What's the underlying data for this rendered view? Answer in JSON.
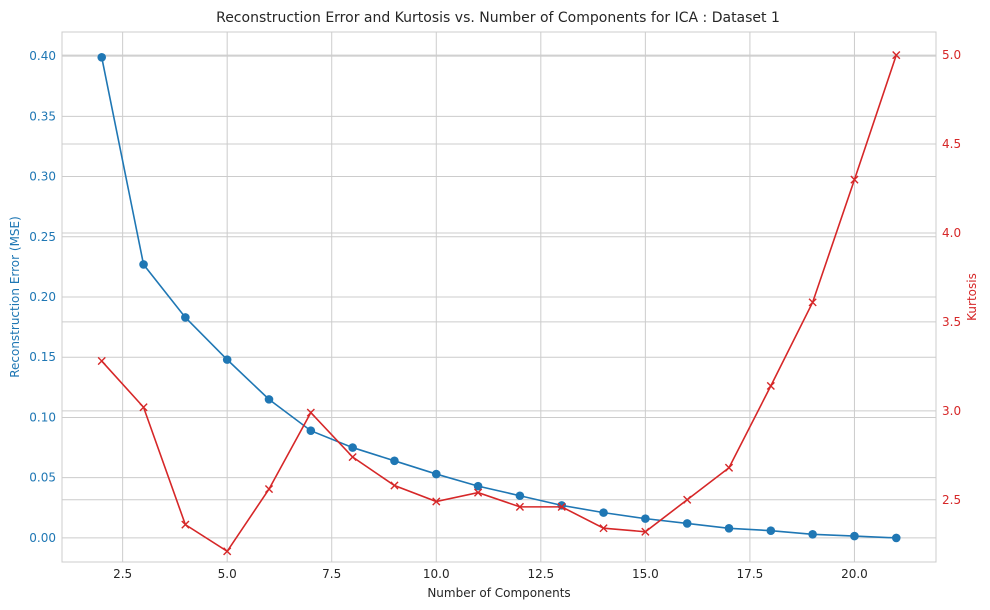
{
  "chart_data": {
    "type": "line",
    "title": "Reconstruction Error and Kurtosis vs. Number of Components for ICA :  Dataset 1",
    "xlabel": "Number of Components",
    "ylabel_left": "Reconstruction Error (MSE)",
    "ylabel_right": "Kurtosis",
    "x": [
      2,
      3,
      4,
      5,
      6,
      7,
      8,
      9,
      10,
      11,
      12,
      13,
      14,
      15,
      16,
      17,
      18,
      19,
      20,
      21
    ],
    "xlim": [
      1.05,
      21.95
    ],
    "ylim_left": [
      -0.02,
      0.42
    ],
    "ylim_right": [
      2.15,
      5.13
    ],
    "x_ticks": [
      "2.5",
      "5.0",
      "7.5",
      "10.0",
      "12.5",
      "15.0",
      "17.5",
      "20.0"
    ],
    "y_ticks_left": [
      "0.00",
      "0.05",
      "0.10",
      "0.15",
      "0.20",
      "0.25",
      "0.30",
      "0.35",
      "0.40"
    ],
    "y_ticks_right": [
      "2.5",
      "3.0",
      "3.5",
      "4.0",
      "4.5",
      "5.0"
    ],
    "grid": true,
    "series": [
      {
        "axis": "left",
        "color": "#1f77b4",
        "marker": "circle",
        "values": [
          0.399,
          0.227,
          0.183,
          0.148,
          0.115,
          0.089,
          0.075,
          0.064,
          0.053,
          0.043,
          0.035,
          0.027,
          0.021,
          0.016,
          0.012,
          0.008,
          0.006,
          0.003,
          0.0015,
          0.0
        ]
      },
      {
        "axis": "right",
        "color": "#d62728",
        "marker": "x",
        "values": [
          3.28,
          3.02,
          2.36,
          2.21,
          2.56,
          2.99,
          2.74,
          2.58,
          2.49,
          2.54,
          2.46,
          2.46,
          2.34,
          2.32,
          2.5,
          2.68,
          3.14,
          3.61,
          4.3,
          5.0
        ]
      }
    ]
  }
}
